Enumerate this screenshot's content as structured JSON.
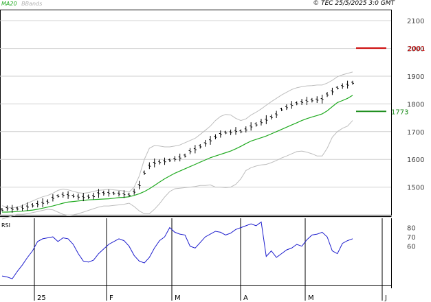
{
  "header": {
    "legend_ma20": "MA20",
    "legend_bbands": "BBands",
    "copyright": "© TEC 25/5/2025 3:0 GMT"
  },
  "rsi_label": "RSI",
  "colors": {
    "ma20": "#1faa1f",
    "bbands": "#bdbdbd",
    "rsi": "#1c1ccd",
    "price_bars": "#000000",
    "resistance": "#cc0000",
    "support": "#1f8f1f",
    "grid": "#cfcfcf"
  },
  "chart_data": {
    "type": "line",
    "title": "",
    "x_ticks": [
      "25",
      "F",
      "M",
      "A",
      "M",
      "J"
    ],
    "price_y_ticks": [
      1500,
      1600,
      1700,
      1800,
      1900,
      2000,
      2100
    ],
    "price_ylim": [
      1400,
      2140
    ],
    "rsi_y_ticks": [
      60,
      70,
      80
    ],
    "rsi_ylim": [
      20,
      90
    ],
    "levels": [
      {
        "label": "2001",
        "value": 2001,
        "type": "resistance"
      },
      {
        "label": "1773",
        "value": 1773,
        "type": "support"
      }
    ],
    "series": [
      {
        "name": "MA20",
        "kind": "ma20",
        "values": [
          1410,
          1410,
          1411,
          1412,
          1413,
          1415,
          1417,
          1420,
          1424,
          1428,
          1432,
          1437,
          1442,
          1446,
          1448,
          1450,
          1452,
          1454,
          1455,
          1456,
          1457,
          1458,
          1460,
          1462,
          1463,
          1465,
          1470,
          1476,
          1484,
          1494,
          1506,
          1518,
          1530,
          1540,
          1550,
          1558,
          1566,
          1574,
          1582,
          1590,
          1598,
          1606,
          1612,
          1618,
          1624,
          1630,
          1638,
          1647,
          1657,
          1666,
          1672,
          1678,
          1684,
          1692,
          1700,
          1708,
          1716,
          1724,
          1732,
          1740,
          1747,
          1753,
          1758,
          1764,
          1775,
          1790,
          1805,
          1812,
          1820,
          1831
        ]
      },
      {
        "name": "BBands",
        "kind": "bb_upper",
        "values": [
          1433,
          1428,
          1425,
          1428,
          1434,
          1442,
          1450,
          1458,
          1465,
          1470,
          1478,
          1488,
          1493,
          1490,
          1485,
          1480,
          1478,
          1480,
          1485,
          1488,
          1490,
          1492,
          1490,
          1488,
          1486,
          1482,
          1500,
          1540,
          1600,
          1640,
          1650,
          1648,
          1645,
          1645,
          1648,
          1652,
          1660,
          1668,
          1676,
          1690,
          1705,
          1720,
          1740,
          1755,
          1762,
          1760,
          1748,
          1740,
          1746,
          1760,
          1770,
          1782,
          1795,
          1808,
          1820,
          1832,
          1842,
          1852,
          1858,
          1862,
          1865,
          1866,
          1868,
          1868,
          1875,
          1885,
          1898,
          1905,
          1910,
          1915
        ]
      },
      {
        "name": "BBands",
        "kind": "bb_lower",
        "values": [
          1385,
          1390,
          1396,
          1402,
          1402,
          1404,
          1408,
          1412,
          1416,
          1420,
          1418,
          1410,
          1402,
          1398,
          1400,
          1404,
          1410,
          1416,
          1422,
          1428,
          1432,
          1432,
          1434,
          1436,
          1438,
          1442,
          1430,
          1414,
          1404,
          1404,
          1420,
          1440,
          1464,
          1484,
          1494,
          1496,
          1498,
          1500,
          1502,
          1506,
          1506,
          1508,
          1500,
          1500,
          1498,
          1500,
          1510,
          1530,
          1560,
          1570,
          1576,
          1580,
          1582,
          1588,
          1596,
          1605,
          1612,
          1620,
          1628,
          1630,
          1626,
          1620,
          1612,
          1612,
          1640,
          1680,
          1700,
          1712,
          1720,
          1740
        ]
      },
      {
        "name": "RSI",
        "kind": "rsi",
        "values": [
          28,
          27,
          25,
          33,
          40,
          48,
          55,
          65,
          68,
          69,
          70,
          65,
          69,
          68,
          62,
          52,
          44,
          43,
          45,
          52,
          57,
          62,
          65,
          68,
          66,
          60,
          50,
          44,
          42,
          48,
          58,
          66,
          70,
          80,
          75,
          73,
          72,
          60,
          58,
          64,
          70,
          73,
          76,
          75,
          72,
          74,
          78,
          80,
          82,
          84,
          82,
          86,
          49,
          55,
          48,
          52,
          56,
          58,
          62,
          60,
          67,
          72,
          73,
          75,
          70,
          55,
          52,
          63,
          66,
          68
        ]
      }
    ]
  }
}
